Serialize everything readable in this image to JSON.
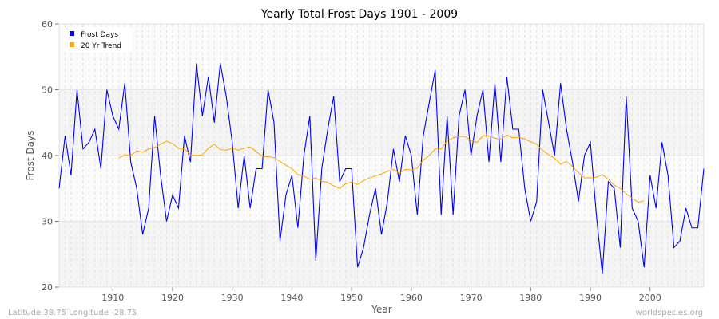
{
  "chart_data": {
    "type": "line",
    "title": "Yearly Total Frost Days 1901 - 2009",
    "xlabel": "Year",
    "ylabel": "Frost Days",
    "xlim": [
      1901,
      2009
    ],
    "ylim": [
      20,
      60
    ],
    "xticks": [
      1910,
      1920,
      1930,
      1940,
      1950,
      1960,
      1970,
      1980,
      1990,
      2000
    ],
    "yticks": [
      20,
      30,
      40,
      50,
      60
    ],
    "grid": true,
    "legend": "top-left",
    "series": [
      {
        "name": "Frost Days",
        "color": "#0000ff",
        "x_start": 1901,
        "values": [
          35,
          43,
          37,
          50,
          41,
          42,
          44,
          38,
          50,
          46,
          44,
          51,
          39,
          35,
          28,
          32,
          46,
          37,
          30,
          34,
          32,
          43,
          39,
          54,
          46,
          52,
          45,
          54,
          49,
          42,
          32,
          40,
          32,
          38,
          38,
          50,
          45,
          27,
          34,
          37,
          29,
          40,
          46,
          24,
          38,
          44,
          49,
          36,
          38,
          38,
          23,
          26,
          31,
          35,
          28,
          33,
          41,
          36,
          43,
          40,
          31,
          43,
          48,
          53,
          31,
          46,
          31,
          46,
          50,
          40,
          46,
          50,
          39,
          51,
          39,
          52,
          44,
          44,
          35,
          30,
          33,
          50,
          45,
          40,
          51,
          44,
          39,
          33,
          40,
          42,
          31,
          22,
          36,
          35,
          26,
          49,
          32,
          30,
          23,
          37,
          32,
          42,
          37,
          26,
          27,
          32,
          29,
          29,
          38
        ]
      },
      {
        "name": "20 Yr Trend",
        "color": "#ffa500",
        "x_start": 1911,
        "values": [
          39.6,
          40.1,
          40.0,
          40.7,
          40.5,
          41.0,
          41.2,
          41.7,
          42.2,
          41.8,
          41.1,
          41.0,
          40.1,
          40.0,
          40.1,
          41.1,
          41.7,
          40.9,
          40.8,
          41.1,
          40.8,
          41.1,
          41.3,
          40.6,
          39.9,
          39.8,
          39.7,
          39.1,
          38.5,
          38.0,
          37.1,
          36.9,
          36.4,
          36.6,
          36.1,
          35.9,
          35.4,
          35.0,
          35.7,
          36.0,
          35.6,
          36.2,
          36.6,
          36.9,
          37.2,
          37.6,
          37.9,
          37.3,
          37.9,
          37.8,
          38.1,
          39.3,
          40.0,
          41.0,
          41.0,
          42.2,
          42.7,
          42.9,
          42.9,
          42.3,
          42.0,
          43.0,
          43.0,
          42.6,
          42.5,
          43.1,
          42.7,
          42.8,
          42.5,
          42.1,
          41.7,
          40.8,
          40.1,
          39.6,
          38.7,
          39.1,
          38.3,
          37.4,
          36.6,
          36.6,
          36.7,
          37.1,
          36.4,
          35.5,
          35.0,
          34.2,
          33.5,
          32.9,
          33.1
        ]
      }
    ]
  },
  "footer": {
    "location": "Latitude 38.75 Longitude -28.75",
    "source": "worldspecies.org"
  }
}
